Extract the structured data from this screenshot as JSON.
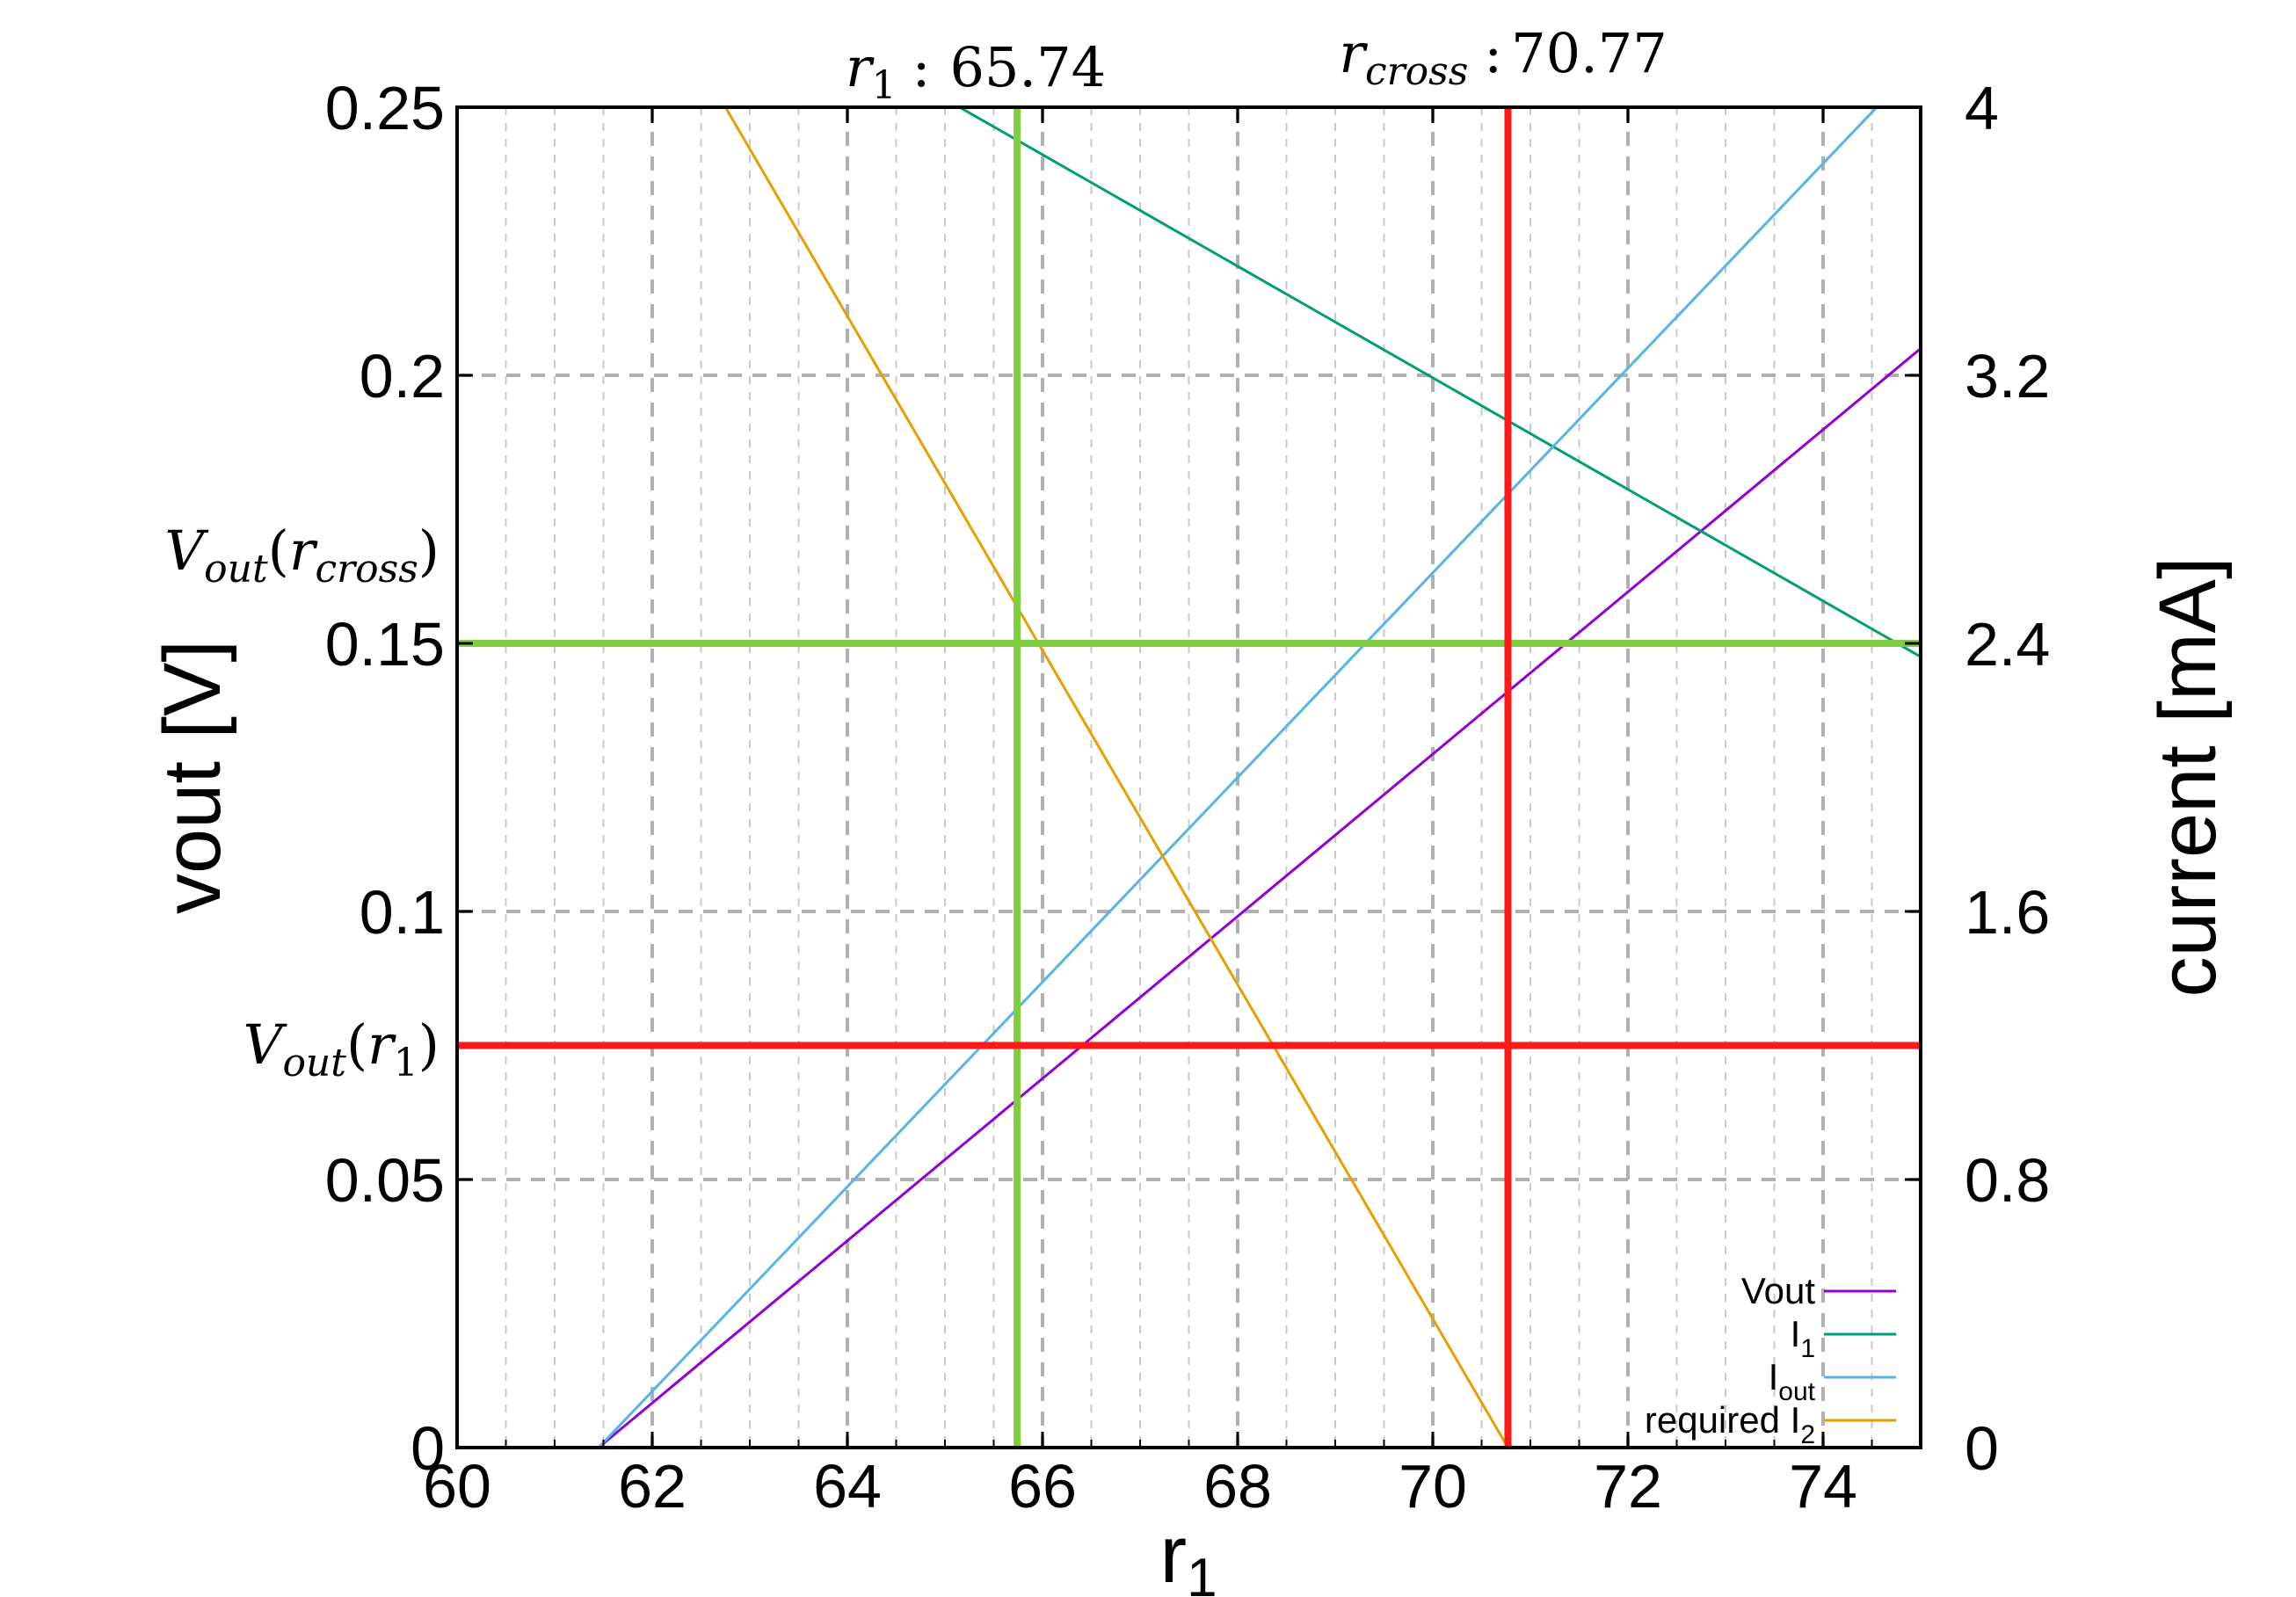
{
  "chart_data": {
    "type": "line",
    "title": "",
    "xlabel": "r",
    "xlabel_sub": "1",
    "ylabel_left": "vout [V]",
    "ylabel_right": "current [mA]",
    "xlim": [
      60,
      75
    ],
    "ylim_left": [
      0,
      0.25
    ],
    "ylim_right": [
      0,
      4
    ],
    "x_ticks": [
      60,
      62,
      64,
      66,
      68,
      70,
      72,
      74
    ],
    "x_tick_labels": [
      "60",
      "62",
      "64",
      "66",
      "68",
      "70",
      "72",
      "74"
    ],
    "y_left_ticks": [
      0,
      0.05,
      0.1,
      0.15,
      0.2,
      0.25
    ],
    "y_left_tick_labels": [
      "0",
      "0.05",
      "0.1",
      "0.15",
      "0.2",
      "0.25"
    ],
    "y_right_ticks": [
      0,
      0.8,
      1.6,
      2.4,
      3.2,
      4
    ],
    "y_right_tick_labels": [
      "0",
      "0.8",
      "1.6",
      "2.4",
      "3.2",
      "4"
    ],
    "grid": true,
    "legend_position": "bottom-right",
    "series": [
      {
        "name": "Vout",
        "label_main": "Vout",
        "label_sub": "",
        "axis": "left",
        "color": "#9400d3",
        "x": [
          61.45,
          75
        ],
        "y": [
          0,
          0.205
        ]
      },
      {
        "name": "I1",
        "label_main": "I",
        "label_sub": "1",
        "axis": "right",
        "color": "#009e73",
        "x": [
          65.15,
          75
        ],
        "y": [
          4,
          2.36
        ]
      },
      {
        "name": "Iout",
        "label_main": "I",
        "label_sub": "out",
        "axis": "right",
        "color": "#56b4e9",
        "x": [
          61.45,
          74.55
        ],
        "y": [
          0,
          4
        ]
      },
      {
        "name": "required I2",
        "label_main": "required I",
        "label_sub": "2",
        "axis": "right",
        "color": "#e69f00",
        "x": [
          62.75,
          70.77
        ],
        "y": [
          4,
          0
        ]
      }
    ],
    "markers": {
      "r1": {
        "x": 65.74,
        "value_label": "65.74",
        "vout": 0.075,
        "color": "#7fce3f"
      },
      "rcross": {
        "x": 70.77,
        "value_label": "70.77",
        "vout": 0.15,
        "color": "#ff1a1a"
      }
    },
    "annotations": {
      "top_r1_var": "r",
      "top_r1_sub": "1",
      "top_rcross_var": "r",
      "top_rcross_sub": "cross",
      "colon": ":",
      "left_vout_rcross_var": "V",
      "left_vout_rcross_sub": "out",
      "left_vout_rcross_arg": "r",
      "left_vout_rcross_arg_sub": "cross",
      "left_vout_r1_var": "V",
      "left_vout_r1_sub": "out",
      "left_vout_r1_arg": "r",
      "left_vout_r1_arg_sub": "1",
      "open_paren": "(",
      "close_paren": ")"
    }
  }
}
